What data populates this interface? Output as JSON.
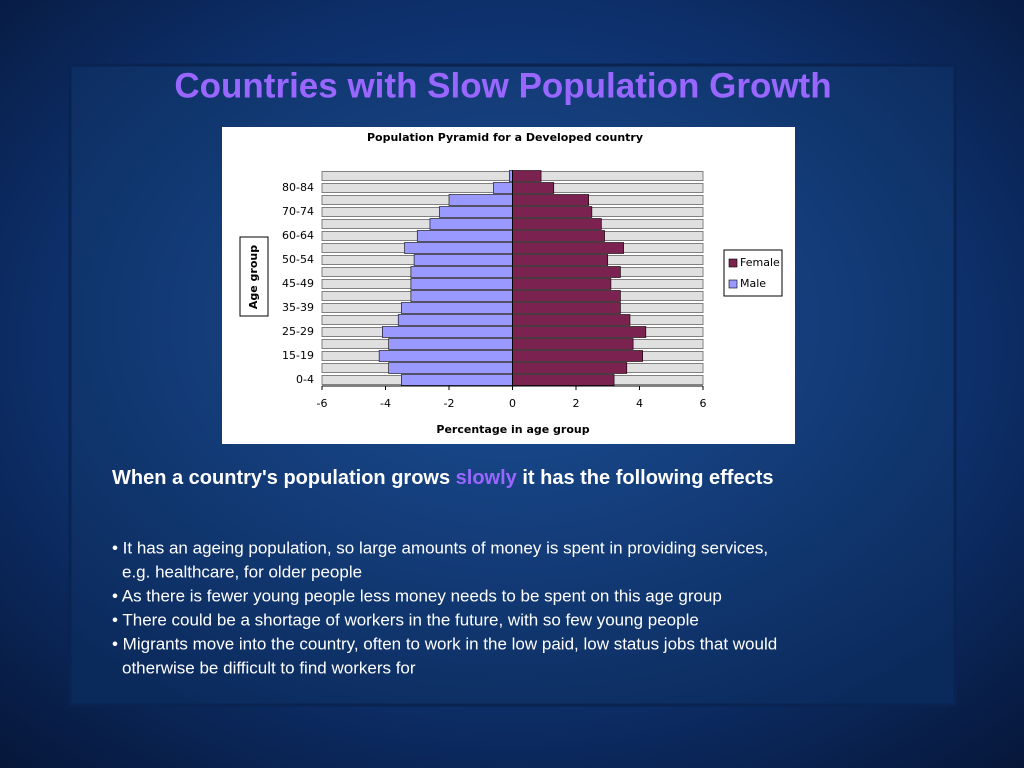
{
  "slide": {
    "title": "Countries with Slow Population Growth",
    "heading": [
      "When a country's population grows ",
      "slowly",
      " it has the following effects"
    ],
    "bullets": [
      [
        "• It has an ageing population, so large amounts of money is spent in providing services,",
        "e.g.  healthcare, for older people"
      ],
      [
        "• As there is fewer young people less money needs to be spent on this age group"
      ],
      [
        "• There could be a shortage of workers in the future, with so few young people"
      ],
      [
        "• Migrants move into the country, often to work in the low paid, low status jobs that would",
        "otherwise be difficult to find workers for"
      ]
    ]
  },
  "chart_data": {
    "type": "bar",
    "orientation": "horizontal",
    "title": "Population Pyramid for a Developed country",
    "xlabel": "Percentage in age group",
    "ylabel": "Age group",
    "categories": [
      "0-4",
      null,
      "15-19",
      null,
      "25-29",
      null,
      "35-39",
      null,
      "45-49",
      null,
      "50-54",
      null,
      "60-64",
      null,
      "70-74",
      null,
      "80-84",
      null
    ],
    "series": [
      {
        "name": "Female",
        "color": "#7b2250",
        "values": [
          3.2,
          3.6,
          4.1,
          3.8,
          4.2,
          3.7,
          3.4,
          3.4,
          3.1,
          3.4,
          3.0,
          3.5,
          2.9,
          2.8,
          2.5,
          2.4,
          1.3,
          0.9
        ]
      },
      {
        "name": "Male",
        "color": "#9999ff",
        "values": [
          -3.5,
          -3.9,
          -4.2,
          -3.9,
          -4.1,
          -3.6,
          -3.5,
          -3.2,
          -3.2,
          -3.2,
          -3.1,
          -3.4,
          -3.0,
          -2.6,
          -2.3,
          -2.0,
          -0.6,
          -0.1
        ]
      }
    ],
    "xlim": [
      -6,
      6
    ],
    "xticks": [
      -6,
      -4,
      -2,
      0,
      2,
      4,
      6
    ],
    "legend": "right"
  }
}
